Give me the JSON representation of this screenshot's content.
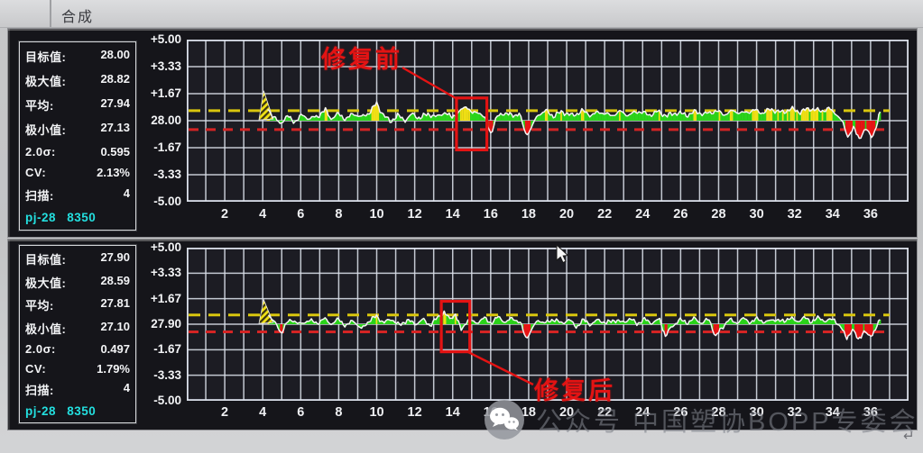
{
  "window": {
    "title": "合成"
  },
  "watermark": {
    "text": "公众号 中国塑协BOPP专委会",
    "icon": "wechat-icon",
    "corner_glyph": "↵"
  },
  "colors": {
    "trace_green": "#2bd41a",
    "warn_yellow": "#f0e014",
    "alarm_red": "#e81414",
    "limit_line_yellow": "#d9c60e",
    "limit_line_red": "#d42424",
    "station_cyan": "#23dfdf",
    "annotation_red": "#e31313",
    "grid_line": "#dbe0ea",
    "plot_bg": "#1c1c23",
    "trace_line": "#f4f4f4"
  },
  "panels": [
    {
      "name": "before-repair",
      "annotation": "修复前",
      "stats": [
        {
          "label": "目标值:",
          "value": "28.00"
        },
        {
          "label": "极大值:",
          "value": "28.82"
        },
        {
          "label": "平均:",
          "value": "27.94"
        },
        {
          "label": "极小值:",
          "value": "27.13"
        },
        {
          "label": "2.0σ:",
          "value": "0.595"
        },
        {
          "label": "CV:",
          "value": "2.13%"
        },
        {
          "label": "扫描:",
          "value": "4"
        }
      ],
      "station": "pj-28 8350",
      "chart_data": {
        "type": "line",
        "target": 28.0,
        "y_tick_labels": [
          "+5.00",
          "+3.33",
          "+1.67",
          "28.00",
          "-1.67",
          "-3.33",
          "-5.00"
        ],
        "x_tick_labels": [
          2,
          4,
          6,
          8,
          10,
          12,
          14,
          16,
          18,
          20,
          22,
          24,
          26,
          28,
          30,
          32,
          34,
          36
        ],
        "x_range": [
          0,
          38
        ],
        "y_range_relative": [
          -5,
          5
        ],
        "upper_limit": 0.62,
        "lower_limit": -0.55,
        "limit_line_end_x": 37,
        "spike": [
          [
            3.8,
            0.05
          ],
          [
            4.05,
            1.85
          ],
          [
            4.55,
            0.1
          ]
        ],
        "red_box": {
          "x1": 14.2,
          "y1": 1.4,
          "x2": 15.8,
          "y2": -1.8
        },
        "points": [
          [
            4.25,
            0.8
          ],
          [
            4.6,
            0.15
          ],
          [
            4.9,
            -0.15
          ],
          [
            5.3,
            0.25
          ],
          [
            5.7,
            -0.05
          ],
          [
            6.1,
            0.35
          ],
          [
            6.5,
            0.1
          ],
          [
            6.9,
            0.3
          ],
          [
            7.3,
            0.65
          ],
          [
            7.6,
            0.15
          ],
          [
            8.0,
            0.4
          ],
          [
            8.4,
            0.1
          ],
          [
            8.8,
            0.45
          ],
          [
            9.2,
            0.2
          ],
          [
            9.6,
            0.5
          ],
          [
            10.0,
            1.05
          ],
          [
            10.35,
            0.35
          ],
          [
            10.7,
            -0.05
          ],
          [
            11.1,
            0.3
          ],
          [
            11.5,
            0.05
          ],
          [
            11.9,
            0.4
          ],
          [
            12.3,
            0.15
          ],
          [
            12.7,
            0.45
          ],
          [
            13.1,
            0.2
          ],
          [
            13.5,
            0.5
          ],
          [
            13.9,
            0.25
          ],
          [
            14.35,
            0.5
          ],
          [
            14.7,
            0.95
          ],
          [
            15.05,
            0.4
          ],
          [
            15.35,
            0.6
          ],
          [
            15.7,
            0.1
          ],
          [
            16.0,
            -0.75
          ],
          [
            16.35,
            0.25
          ],
          [
            16.7,
            0.5
          ],
          [
            17.1,
            0.3
          ],
          [
            17.5,
            0.45
          ],
          [
            17.85,
            -0.85
          ],
          [
            18.15,
            -0.45
          ],
          [
            18.5,
            0.4
          ],
          [
            18.9,
            0.6
          ],
          [
            19.3,
            0.3
          ],
          [
            19.8,
            0.55
          ],
          [
            20.3,
            0.3
          ],
          [
            20.8,
            0.6
          ],
          [
            21.3,
            0.35
          ],
          [
            21.8,
            0.55
          ],
          [
            22.3,
            0.3
          ],
          [
            22.8,
            0.55
          ],
          [
            23.3,
            0.35
          ],
          [
            23.8,
            0.6
          ],
          [
            24.3,
            0.35
          ],
          [
            24.8,
            0.55
          ],
          [
            25.3,
            0.3
          ],
          [
            25.8,
            0.5
          ],
          [
            26.3,
            0.35
          ],
          [
            26.8,
            0.55
          ],
          [
            27.3,
            0.4
          ],
          [
            27.8,
            0.6
          ],
          [
            28.3,
            0.4
          ],
          [
            28.8,
            0.6
          ],
          [
            29.3,
            0.45
          ],
          [
            29.8,
            0.65
          ],
          [
            30.3,
            0.5
          ],
          [
            30.8,
            0.7
          ],
          [
            31.3,
            0.5
          ],
          [
            31.8,
            0.72
          ],
          [
            32.3,
            0.55
          ],
          [
            32.8,
            0.75
          ],
          [
            33.3,
            0.6
          ],
          [
            33.8,
            0.72
          ],
          [
            34.2,
            0.45
          ],
          [
            34.55,
            -0.2
          ],
          [
            34.8,
            -0.95
          ],
          [
            35.1,
            -0.5
          ],
          [
            35.4,
            -1.05
          ],
          [
            35.75,
            -0.55
          ],
          [
            36.05,
            -0.95
          ],
          [
            36.3,
            -0.45
          ],
          [
            36.5,
            0.55
          ]
        ]
      }
    },
    {
      "name": "after-repair",
      "annotation": "修复后",
      "stats": [
        {
          "label": "目标值:",
          "value": "27.90"
        },
        {
          "label": "极大值:",
          "value": "28.59"
        },
        {
          "label": "平均:",
          "value": "27.81"
        },
        {
          "label": "极小值:",
          "value": "27.10"
        },
        {
          "label": "2.0σ:",
          "value": "0.497"
        },
        {
          "label": "CV:",
          "value": "1.79%"
        },
        {
          "label": "扫描:",
          "value": "4"
        }
      ],
      "station": "pj-28 8350",
      "chart_data": {
        "type": "line",
        "target": 27.9,
        "y_tick_labels": [
          "+5.00",
          "+3.33",
          "+1.67",
          "27.90",
          "-1.67",
          "-3.33",
          "-5.00"
        ],
        "x_tick_labels": [
          2,
          4,
          6,
          8,
          10,
          12,
          14,
          16,
          18,
          20,
          22,
          24,
          26,
          28,
          30,
          32,
          34,
          36
        ],
        "x_range": [
          0,
          38
        ],
        "y_range_relative": [
          -5,
          5
        ],
        "upper_limit": 0.6,
        "lower_limit": -0.5,
        "limit_line_end_x": 37,
        "spike": [
          [
            3.8,
            0.05
          ],
          [
            4.05,
            1.6
          ],
          [
            4.55,
            0.1
          ]
        ],
        "red_box": {
          "x1": 13.4,
          "y1": 1.5,
          "x2": 14.9,
          "y2": -1.8
        },
        "points": [
          [
            4.3,
            0.7
          ],
          [
            4.65,
            0.05
          ],
          [
            4.95,
            -0.55
          ],
          [
            5.25,
            0.05
          ],
          [
            5.6,
            0.3
          ],
          [
            6.0,
            -0.05
          ],
          [
            6.4,
            0.3
          ],
          [
            6.8,
            0.05
          ],
          [
            7.2,
            0.35
          ],
          [
            7.6,
            0.05
          ],
          [
            8.0,
            0.3
          ],
          [
            8.4,
            -0.1
          ],
          [
            8.8,
            0.25
          ],
          [
            9.2,
            -0.35
          ],
          [
            9.6,
            0.25
          ],
          [
            10.0,
            0.5
          ],
          [
            10.4,
            0.1
          ],
          [
            10.8,
            0.35
          ],
          [
            11.2,
            -0.1
          ],
          [
            11.6,
            0.3
          ],
          [
            12.0,
            0.0
          ],
          [
            12.4,
            0.3
          ],
          [
            12.8,
            -0.05
          ],
          [
            13.2,
            0.4
          ],
          [
            13.55,
            0.8
          ],
          [
            13.85,
            0.3
          ],
          [
            14.15,
            0.7
          ],
          [
            14.45,
            -0.45
          ],
          [
            14.8,
            0.35
          ],
          [
            15.2,
            0.05
          ],
          [
            15.6,
            0.4
          ],
          [
            16.0,
            0.1
          ],
          [
            16.4,
            0.45
          ],
          [
            16.8,
            0.15
          ],
          [
            17.2,
            0.4
          ],
          [
            17.55,
            0.1
          ],
          [
            17.85,
            -0.9
          ],
          [
            18.15,
            -0.4
          ],
          [
            18.5,
            0.3
          ],
          [
            18.9,
            0.05
          ],
          [
            19.3,
            0.35
          ],
          [
            19.7,
            0.05
          ],
          [
            20.1,
            0.3
          ],
          [
            20.5,
            -0.15
          ],
          [
            20.9,
            0.25
          ],
          [
            21.3,
            0.0
          ],
          [
            21.7,
            0.3
          ],
          [
            22.1,
            0.05
          ],
          [
            22.5,
            0.3
          ],
          [
            22.9,
            0.1
          ],
          [
            23.3,
            0.35
          ],
          [
            23.7,
            0.05
          ],
          [
            24.1,
            0.3
          ],
          [
            24.5,
            0.1
          ],
          [
            24.9,
            0.3
          ],
          [
            25.2,
            -0.75
          ],
          [
            25.5,
            -0.25
          ],
          [
            25.9,
            0.3
          ],
          [
            26.3,
            0.1
          ],
          [
            26.7,
            0.35
          ],
          [
            27.1,
            0.1
          ],
          [
            27.5,
            0.3
          ],
          [
            27.85,
            -0.8
          ],
          [
            28.15,
            -0.3
          ],
          [
            28.5,
            0.3
          ],
          [
            28.9,
            0.1
          ],
          [
            29.3,
            0.35
          ],
          [
            29.7,
            0.15
          ],
          [
            30.1,
            0.35
          ],
          [
            30.5,
            0.1
          ],
          [
            30.9,
            0.35
          ],
          [
            31.3,
            0.15
          ],
          [
            31.7,
            0.4
          ],
          [
            32.1,
            0.2
          ],
          [
            32.5,
            0.4
          ],
          [
            32.9,
            0.2
          ],
          [
            33.3,
            0.4
          ],
          [
            33.7,
            0.2
          ],
          [
            34.1,
            0.35
          ],
          [
            34.45,
            -0.3
          ],
          [
            34.75,
            -0.85
          ],
          [
            35.05,
            -0.4
          ],
          [
            35.35,
            -0.95
          ],
          [
            35.65,
            -0.5
          ],
          [
            35.95,
            -0.8
          ],
          [
            36.25,
            -0.35
          ],
          [
            36.5,
            0.3
          ]
        ]
      }
    }
  ]
}
